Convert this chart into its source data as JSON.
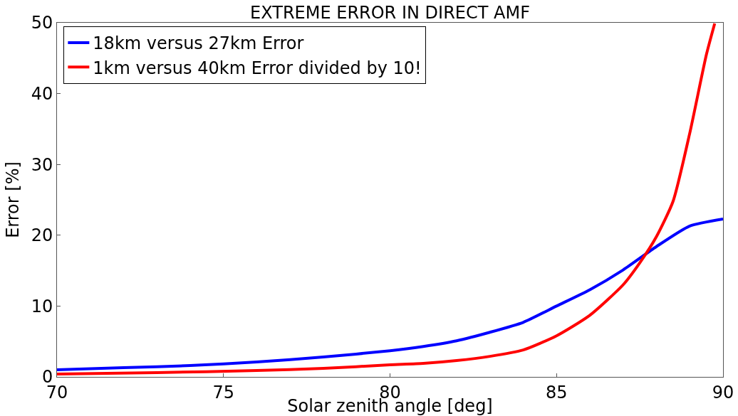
{
  "chart_data": {
    "type": "line",
    "title": "EXTREME ERROR IN DIRECT AMF",
    "xlabel": "Solar zenith angle [deg]",
    "ylabel": "Error [%]",
    "xlim": [
      70,
      90
    ],
    "xticks": [
      70,
      75,
      80,
      85,
      90
    ],
    "ylim": [
      0,
      50
    ],
    "yticks": [
      0,
      10,
      20,
      30,
      40,
      50
    ],
    "grid": false,
    "legend": "top left",
    "marker": "none",
    "line_style": "solid",
    "series": [
      {
        "name": "18km versus 27km Error",
        "color": "#0000ff",
        "x": [
          70,
          72,
          74,
          76,
          78,
          80,
          81,
          82,
          83,
          84,
          85,
          86,
          87,
          88,
          89,
          90
        ],
        "values": [
          1.0,
          1.3,
          1.6,
          2.1,
          2.8,
          3.7,
          4.3,
          5.1,
          6.3,
          7.7,
          10.0,
          12.3,
          15.1,
          18.4,
          21.3,
          22.3
        ]
      },
      {
        "name": "1km versus 40km Error divided by 10!",
        "color": "#ff0000",
        "x": [
          70,
          73,
          76,
          78,
          80,
          81,
          82,
          83,
          84,
          85,
          86,
          87,
          87.5,
          88,
          88.5,
          89,
          89.5,
          89.75
        ],
        "values": [
          0.4,
          0.6,
          0.9,
          1.2,
          1.7,
          1.9,
          2.3,
          2.9,
          3.8,
          5.8,
          8.7,
          13.0,
          16.1,
          19.8,
          24.8,
          34.4,
          45.5,
          49.9
        ]
      }
    ]
  }
}
